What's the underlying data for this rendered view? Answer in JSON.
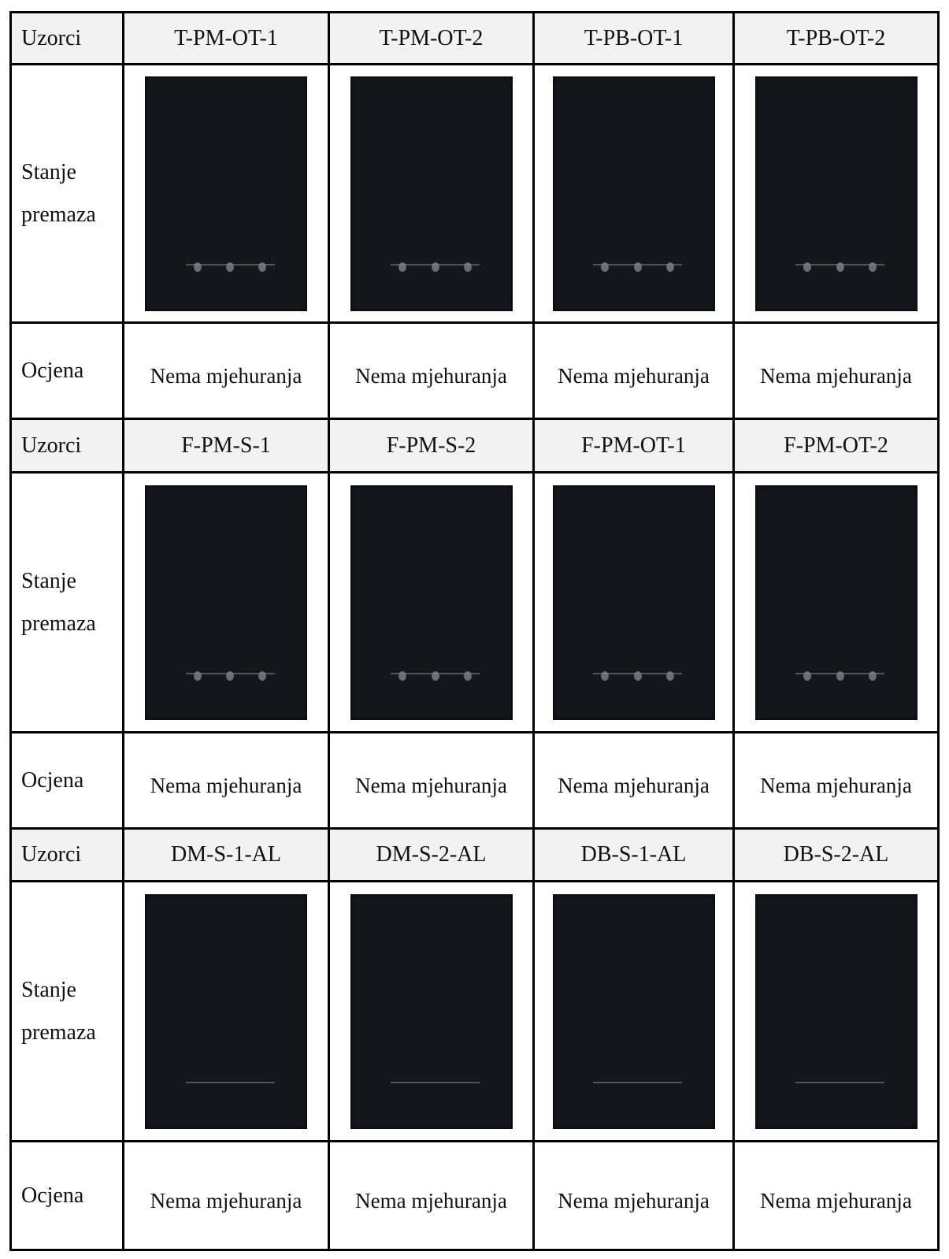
{
  "blocks": [
    {
      "header_label": "Uzorci",
      "samples": [
        "T-PM-OT-1",
        "T-PM-OT-2",
        "T-PB-OT-1",
        "T-PB-OT-2"
      ],
      "condition_label": "Stanje premaza",
      "rating_label": "Ocjena",
      "ratings": [
        "Nema mjehuranja",
        "Nema mjehuranja",
        "Nema mjehuranja",
        "Nema mjehuranja"
      ]
    },
    {
      "header_label": "Uzorci",
      "samples": [
        "F-PM-S-1",
        "F-PM-S-2",
        "F-PM-OT-1",
        "F-PM-OT-2"
      ],
      "condition_label": "Stanje premaza",
      "rating_label": "Ocjena",
      "ratings": [
        "Nema mjehuranja",
        "Nema mjehuranja",
        "Nema mjehuranja",
        "Nema mjehuranja"
      ]
    },
    {
      "header_label": "Uzorci",
      "samples": [
        "DM-S-1-AL",
        "DM-S-2-AL",
        "DB-S-1-AL",
        "DB-S-2-AL"
      ],
      "condition_label": "Stanje premaza",
      "rating_label": "Ocjena",
      "ratings": [
        "Nema mjehuranja",
        "Nema mjehuranja",
        "Nema mjehuranja",
        "Nema mjehuranja"
      ]
    }
  ]
}
